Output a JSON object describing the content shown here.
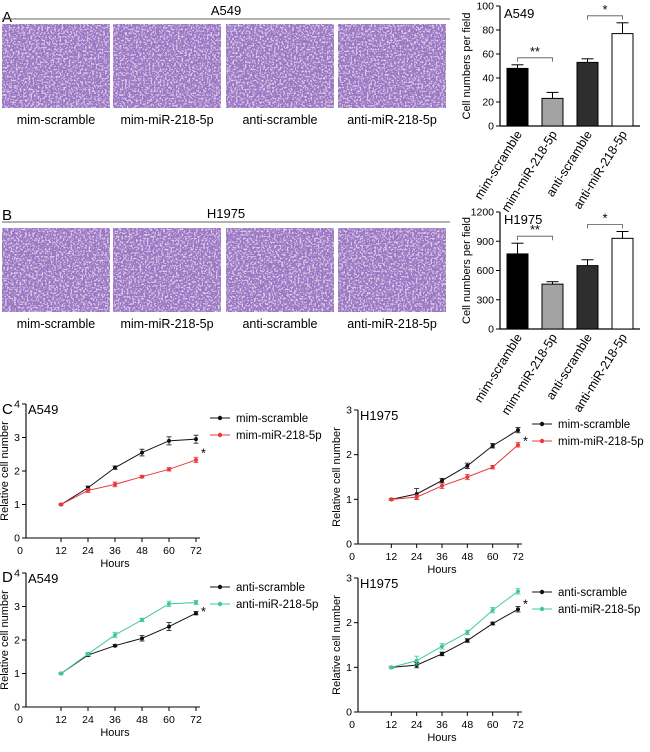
{
  "panels": {
    "a": {
      "letter": "A",
      "cell_line": "A549",
      "image_labels": [
        "mim-scramble",
        "mim-miR-218-5p",
        "anti-scramble",
        "anti-miR-218-5p"
      ],
      "image_tint": "#8f6fae"
    },
    "b": {
      "letter": "B",
      "cell_line": "H1975",
      "image_labels": [
        "mim-scramble",
        "mim-miR-218-5p",
        "anti-scramble",
        "anti-miR-218-5p"
      ],
      "image_tint": "#6a4b9c"
    },
    "c": {
      "letter": "C"
    },
    "d": {
      "letter": "D"
    }
  },
  "chart_data": [
    {
      "id": "bar-a549",
      "type": "bar",
      "title": "A549",
      "ylabel": "Cell numbers per field",
      "ylim": [
        0,
        100
      ],
      "yticks": [
        0,
        20,
        40,
        60,
        80,
        100
      ],
      "categories": [
        "mim-scramble",
        "mim-miR-218-5p",
        "anti-scramble",
        "anti-miR-218-5p"
      ],
      "values": [
        48,
        23,
        53,
        77
      ],
      "errors": [
        3,
        5,
        3,
        9
      ],
      "colors": [
        "#000000",
        "#a3a3a3",
        "#2e2e2e",
        "#ffffff"
      ],
      "significance": [
        {
          "pair": [
            0,
            1
          ],
          "label": "**"
        },
        {
          "pair": [
            2,
            3
          ],
          "label": "*"
        }
      ]
    },
    {
      "id": "bar-h1975",
      "type": "bar",
      "title": "H1975",
      "ylabel": "Cell numbers per field",
      "ylim": [
        0,
        1200
      ],
      "yticks": [
        0,
        300,
        600,
        900,
        1200
      ],
      "categories": [
        "mim-scramble",
        "mim-miR-218-5p",
        "anti-scramble",
        "anti-miR-218-5p"
      ],
      "values": [
        770,
        460,
        650,
        930
      ],
      "errors": [
        110,
        25,
        60,
        70
      ],
      "colors": [
        "#000000",
        "#a3a3a3",
        "#2e2e2e",
        "#ffffff"
      ],
      "significance": [
        {
          "pair": [
            0,
            1
          ],
          "label": "**"
        },
        {
          "pair": [
            2,
            3
          ],
          "label": "*"
        }
      ]
    },
    {
      "id": "line-c-a549",
      "type": "line",
      "title": "A549",
      "xlabel": "Hours",
      "ylabel": "Relative cell number",
      "x": [
        12,
        24,
        36,
        48,
        60,
        72
      ],
      "xticks": [
        0,
        12,
        24,
        36,
        48,
        60,
        72
      ],
      "ylim": [
        0,
        4
      ],
      "yticks": [
        0,
        1,
        2,
        3,
        4
      ],
      "series": [
        {
          "name": "mim-scramble",
          "color": "#111111",
          "values": [
            1.0,
            1.5,
            2.1,
            2.55,
            2.9,
            2.95
          ],
          "errors": [
            0.02,
            0.05,
            0.05,
            0.1,
            0.12,
            0.12
          ]
        },
        {
          "name": "mim-miR-218-5p",
          "color": "#e83a3a",
          "values": [
            1.0,
            1.42,
            1.6,
            1.83,
            2.05,
            2.33
          ],
          "errors": [
            0.02,
            0.06,
            0.07,
            0.04,
            0.05,
            0.08
          ]
        }
      ],
      "annotation": "*"
    },
    {
      "id": "line-c-h1975",
      "type": "line",
      "title": "H1975",
      "xlabel": "Hours",
      "ylabel": "Relative cell number",
      "x": [
        12,
        24,
        36,
        48,
        60,
        72
      ],
      "xticks": [
        0,
        12,
        24,
        36,
        48,
        60,
        72
      ],
      "ylim": [
        0,
        3
      ],
      "yticks": [
        0,
        1,
        2,
        3
      ],
      "series": [
        {
          "name": "mim-scramble",
          "color": "#111111",
          "values": [
            1.0,
            1.12,
            1.42,
            1.75,
            2.2,
            2.55
          ],
          "errors": [
            0.02,
            0.12,
            0.05,
            0.06,
            0.05,
            0.06
          ]
        },
        {
          "name": "mim-miR-218-5p",
          "color": "#e83a3a",
          "values": [
            1.0,
            1.05,
            1.3,
            1.5,
            1.72,
            2.22
          ],
          "errors": [
            0.02,
            0.05,
            0.06,
            0.06,
            0.04,
            0.05
          ]
        }
      ],
      "annotation": "*"
    },
    {
      "id": "line-d-a549",
      "type": "line",
      "title": "A549",
      "xlabel": "Hours",
      "ylabel": "Relative cell number",
      "x": [
        12,
        24,
        36,
        48,
        60,
        72
      ],
      "xticks": [
        0,
        12,
        24,
        36,
        48,
        60,
        72
      ],
      "ylim": [
        0,
        4
      ],
      "yticks": [
        0,
        1,
        2,
        3,
        4
      ],
      "series": [
        {
          "name": "anti-scramble",
          "color": "#111111",
          "values": [
            1.0,
            1.55,
            1.83,
            2.05,
            2.4,
            2.8
          ],
          "errors": [
            0.02,
            0.04,
            0.03,
            0.08,
            0.12,
            0.05
          ]
        },
        {
          "name": "anti-miR-218-5p",
          "color": "#3fc99a",
          "values": [
            1.0,
            1.58,
            2.15,
            2.6,
            3.08,
            3.12
          ],
          "errors": [
            0.02,
            0.05,
            0.08,
            0.05,
            0.08,
            0.06
          ]
        }
      ],
      "annotation": "*"
    },
    {
      "id": "line-d-h1975",
      "type": "line",
      "title": "H1975",
      "xlabel": "Hours",
      "ylabel": "Relative cell number",
      "x": [
        12,
        24,
        36,
        48,
        60,
        72
      ],
      "xticks": [
        0,
        12,
        24,
        36,
        48,
        60,
        72
      ],
      "ylim": [
        0,
        3
      ],
      "yticks": [
        0,
        1,
        2,
        3
      ],
      "series": [
        {
          "name": "anti-scramble",
          "color": "#111111",
          "values": [
            1.0,
            1.05,
            1.3,
            1.6,
            1.98,
            2.3
          ],
          "errors": [
            0.02,
            0.06,
            0.04,
            0.04,
            0.03,
            0.06
          ]
        },
        {
          "name": "anti-miR-218-5p",
          "color": "#3fc99a",
          "values": [
            1.0,
            1.15,
            1.47,
            1.78,
            2.28,
            2.7
          ],
          "errors": [
            0.02,
            0.1,
            0.06,
            0.05,
            0.06,
            0.06
          ]
        }
      ],
      "annotation": "*"
    }
  ]
}
